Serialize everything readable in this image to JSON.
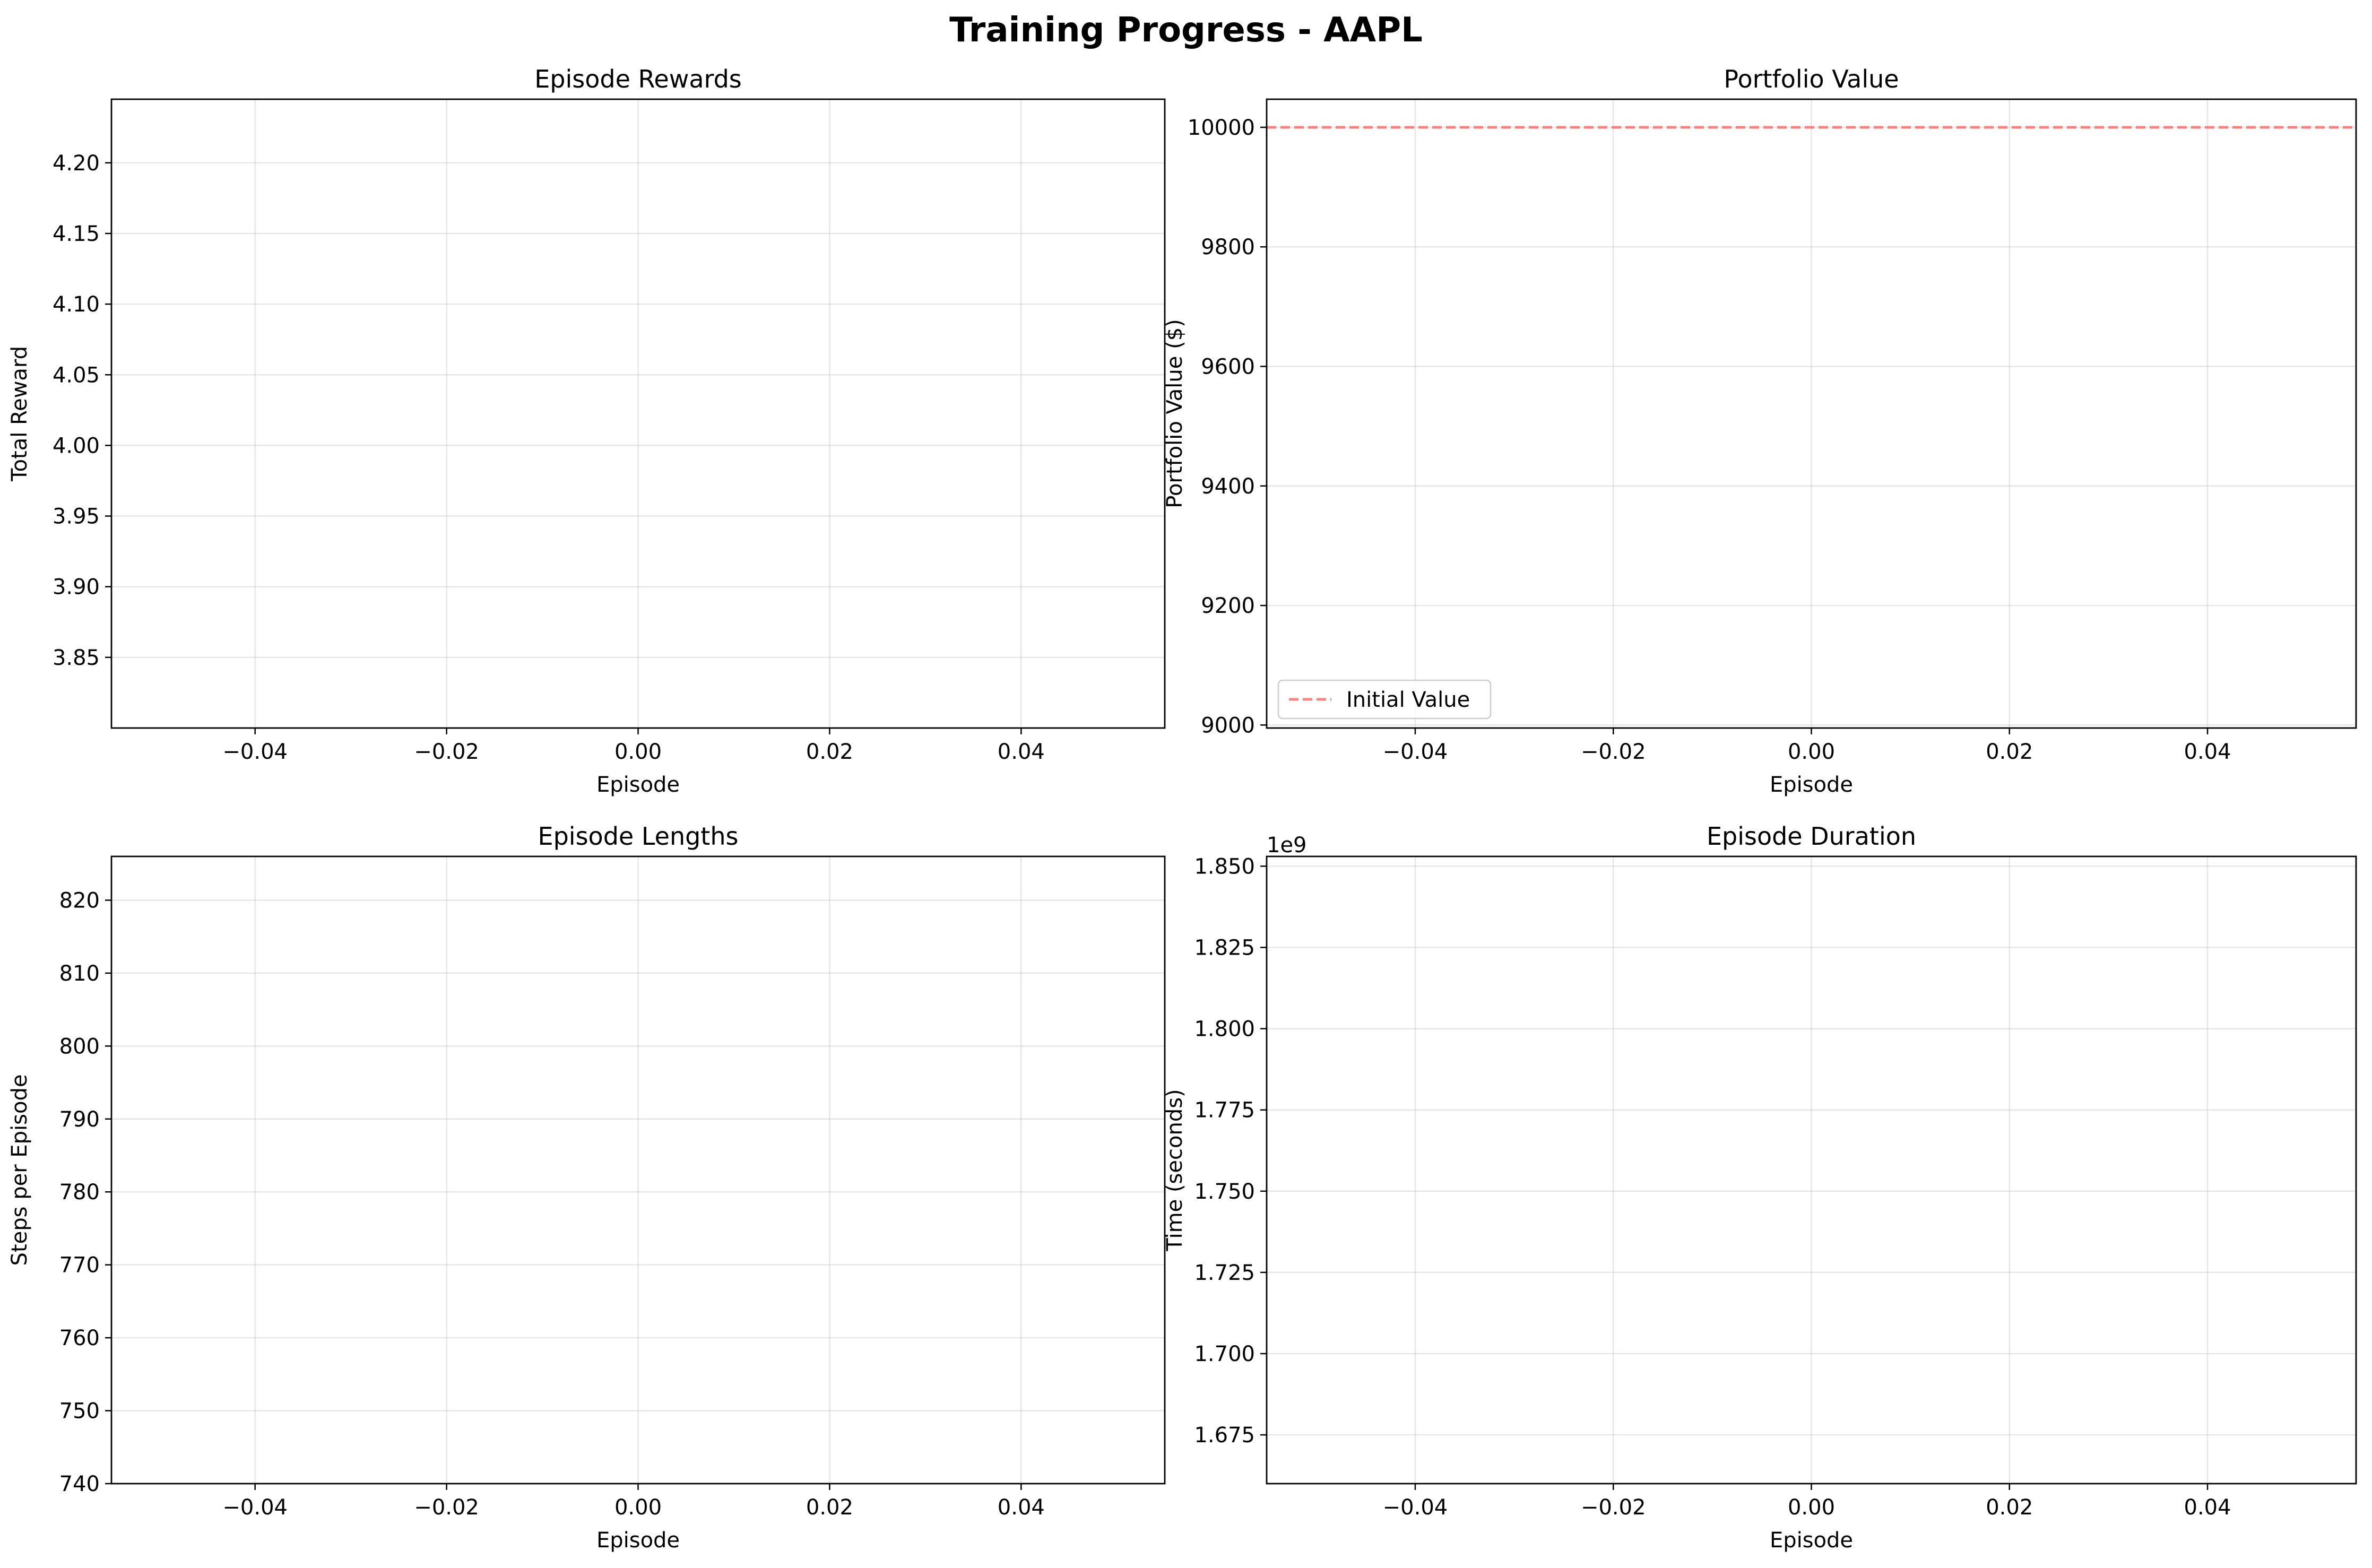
{
  "figure": {
    "title": "Training Progress - AAPL"
  },
  "chart_data": [
    {
      "type": "line",
      "title": "Episode Rewards",
      "xlabel": "Episode",
      "ylabel": "Total Reward",
      "xlim": [
        -0.055,
        0.055
      ],
      "ylim": [
        3.8,
        4.245
      ],
      "xticks": [
        -0.04,
        -0.02,
        0.0,
        0.02,
        0.04
      ],
      "xtick_labels": [
        "−0.04",
        "−0.02",
        "0.00",
        "0.02",
        "0.04"
      ],
      "yticks": [
        3.85,
        3.9,
        3.95,
        4.0,
        4.05,
        4.1,
        4.15,
        4.2
      ],
      "ytick_labels": [
        "3.85",
        "3.90",
        "3.95",
        "4.00",
        "4.05",
        "4.10",
        "4.15",
        "4.20"
      ],
      "grid": true,
      "series": [],
      "hlines": []
    },
    {
      "type": "line",
      "title": "Portfolio Value",
      "xlabel": "Episode",
      "ylabel": "Portfolio Value ($)",
      "xlim": [
        -0.055,
        0.055
      ],
      "ylim": [
        8995,
        10047
      ],
      "xticks": [
        -0.04,
        -0.02,
        0.0,
        0.02,
        0.04
      ],
      "xtick_labels": [
        "−0.04",
        "−0.02",
        "0.00",
        "0.02",
        "0.04"
      ],
      "yticks": [
        9000,
        9200,
        9400,
        9600,
        9800,
        10000
      ],
      "ytick_labels": [
        "9000",
        "9200",
        "9400",
        "9600",
        "9800",
        "10000"
      ],
      "grid": true,
      "series": [],
      "hlines": [
        {
          "name": "Initial Value",
          "y": 10000,
          "color": "#ff6b6b",
          "style": "dashed"
        }
      ],
      "legend": {
        "placement": "lower-left",
        "entries": [
          "Initial Value"
        ]
      }
    },
    {
      "type": "line",
      "title": "Episode Lengths",
      "xlabel": "Episode",
      "ylabel": "Steps per Episode",
      "xlim": [
        -0.055,
        0.055
      ],
      "ylim": [
        740,
        826
      ],
      "xticks": [
        -0.04,
        -0.02,
        0.0,
        0.02,
        0.04
      ],
      "xtick_labels": [
        "−0.04",
        "−0.02",
        "0.00",
        "0.02",
        "0.04"
      ],
      "yticks": [
        740,
        750,
        760,
        770,
        780,
        790,
        800,
        810,
        820
      ],
      "ytick_labels": [
        "740",
        "750",
        "760",
        "770",
        "780",
        "790",
        "800",
        "810",
        "820"
      ],
      "grid": true,
      "series": [],
      "hlines": []
    },
    {
      "type": "line",
      "title": "Episode Duration",
      "xlabel": "Episode",
      "ylabel": "Time (seconds)",
      "offset_label": "1e9",
      "xlim": [
        -0.055,
        0.055
      ],
      "ylim": [
        1.66,
        1.853
      ],
      "xticks": [
        -0.04,
        -0.02,
        0.0,
        0.02,
        0.04
      ],
      "xtick_labels": [
        "−0.04",
        "−0.02",
        "0.00",
        "0.02",
        "0.04"
      ],
      "yticks": [
        1.675,
        1.7,
        1.725,
        1.75,
        1.775,
        1.8,
        1.825,
        1.85
      ],
      "ytick_labels": [
        "1.675",
        "1.700",
        "1.725",
        "1.750",
        "1.775",
        "1.800",
        "1.825",
        "1.850"
      ],
      "grid": true,
      "series": [],
      "hlines": []
    }
  ]
}
